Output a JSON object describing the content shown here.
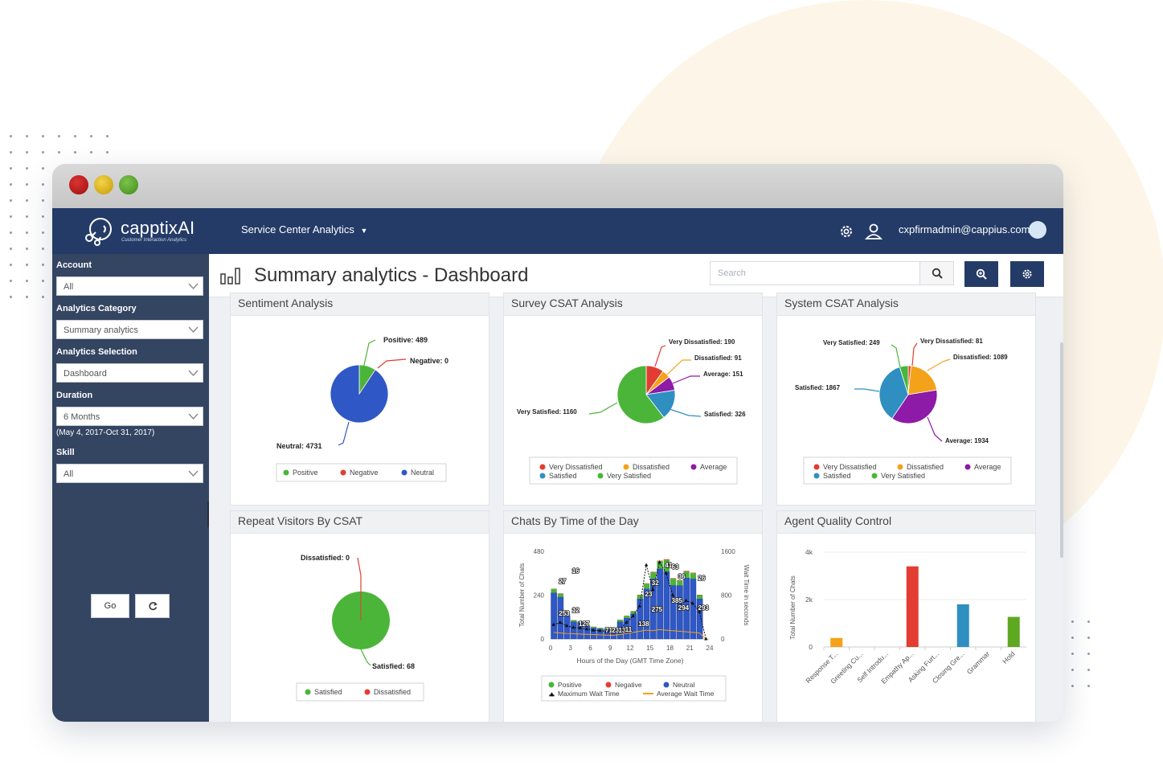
{
  "app": {
    "brand_name": "capptixAI",
    "brand_tagline": "Customer Interaction Analytics",
    "nav_menu": "Service Center Analytics",
    "user_email": "cxpfirmadmin@cappius.com"
  },
  "sidebar": {
    "account_label": "Account",
    "account_value": "All",
    "category_label": "Analytics Category",
    "category_value": "Summary analytics",
    "selection_label": "Analytics Selection",
    "selection_value": "Dashboard",
    "duration_label": "Duration",
    "duration_value": "6 Months",
    "duration_range": "(May 4, 2017-Oct 31, 2017)",
    "skill_label": "Skill",
    "skill_value": "All",
    "go_label": "Go"
  },
  "header": {
    "title": "Summary analytics - Dashboard",
    "search_placeholder": "Search"
  },
  "cards": {
    "sentiment": "Sentiment Analysis",
    "survey": "Survey CSAT Analysis",
    "system": "System CSAT Analysis",
    "repeat": "Repeat Visitors By CSAT",
    "chats": "Chats By Time of the Day",
    "agent": "Agent Quality Control"
  },
  "colors": {
    "navy": "#243b67",
    "sidebar": "#344562",
    "green": "#4bb539",
    "red": "#e23c33",
    "blue": "#2f57c5",
    "orange": "#f5a21b",
    "purple": "#8e1aa8",
    "teal": "#2f8fc0",
    "olive": "#5ea822"
  },
  "chart_data": [
    {
      "type": "pie",
      "title": "Sentiment Analysis",
      "slices": [
        {
          "label": "Positive",
          "value": 489,
          "color": "#4bb539"
        },
        {
          "label": "Negative",
          "value": 0,
          "color": "#e23c33"
        },
        {
          "label": "Neutral",
          "value": 4731,
          "color": "#2f57c5"
        }
      ],
      "callouts": [
        "Positive: 489",
        "Negative: 0",
        "Neutral: 4731"
      ],
      "legend": [
        "Positive",
        "Negative",
        "Neutral"
      ]
    },
    {
      "type": "pie",
      "title": "Survey CSAT Analysis",
      "slices": [
        {
          "label": "Very Dissatisfied",
          "value": 190,
          "color": "#e23c33"
        },
        {
          "label": "Dissatisfied",
          "value": 91,
          "color": "#f5a21b"
        },
        {
          "label": "Average",
          "value": 151,
          "color": "#8e1aa8"
        },
        {
          "label": "Satisfied",
          "value": 326,
          "color": "#2f8fc0"
        },
        {
          "label": "Very Satisfied",
          "value": 1160,
          "color": "#4bb539"
        }
      ],
      "callouts": [
        "Very Dissatisfied: 190",
        "Dissatisfied: 91",
        "Average: 151",
        "Satisfied: 326",
        "Very Satisfied: 1160"
      ],
      "legend": [
        "Very Dissatisfied",
        "Dissatisfied",
        "Average",
        "Satisfied",
        "Very Satisfied"
      ]
    },
    {
      "type": "pie",
      "title": "System CSAT Analysis",
      "slices": [
        {
          "label": "Very Dissatisfied",
          "value": 81,
          "color": "#e23c33"
        },
        {
          "label": "Dissatisfied",
          "value": 1089,
          "color": "#f5a21b"
        },
        {
          "label": "Average",
          "value": 1934,
          "color": "#8e1aa8"
        },
        {
          "label": "Satisfied",
          "value": 1867,
          "color": "#2f8fc0"
        },
        {
          "label": "Very Satisfied",
          "value": 249,
          "color": "#4bb539"
        }
      ],
      "callouts": [
        "Very Dissatisfied: 81",
        "Dissatisfied: 1089",
        "Average: 1934",
        "Satisfied: 1867",
        "Very Satisfied: 249"
      ],
      "legend": [
        "Very Dissatisfied",
        "Dissatisfied",
        "Average",
        "Satisfied",
        "Very Satisfied"
      ]
    },
    {
      "type": "pie",
      "title": "Repeat Visitors By CSAT",
      "slices": [
        {
          "label": "Satisfied",
          "value": 68,
          "color": "#4bb539"
        },
        {
          "label": "Dissatisfied",
          "value": 0,
          "color": "#e23c33"
        }
      ],
      "callouts": [
        "Dissatisfied: 0",
        "Satisfied: 68"
      ],
      "legend": [
        "Satisfied",
        "Dissatisfied"
      ]
    },
    {
      "type": "bar",
      "title": "Chats By Time of the Day",
      "xlabel": "Hours of the Day (GMT Time Zone)",
      "ylabel": "Total Number of Chats",
      "y2label": "Wait Time in seconds",
      "ylim": [
        0,
        480
      ],
      "y2lim": [
        0,
        1600
      ],
      "yticks": [
        "480",
        "240",
        "0"
      ],
      "y2ticks": [
        "1600",
        "800",
        "0"
      ],
      "xticks": [
        "0",
        "3",
        "6",
        "9",
        "12",
        "15",
        "18",
        "21",
        "24"
      ],
      "hours": [
        0,
        1,
        2,
        3,
        4,
        5,
        6,
        7,
        8,
        9,
        10,
        11,
        12,
        13,
        14,
        15,
        16,
        17,
        18,
        19,
        20,
        21,
        22,
        23
      ],
      "series": [
        {
          "name": "Neutral",
          "values": [
            253,
            230,
            127,
            95,
            90,
            71,
            60,
            55,
            50,
            45,
            95,
            115,
            138,
            220,
            275,
            330,
            385,
            370,
            294,
            293,
            335,
            330,
            220,
            0
          ]
        },
        {
          "name": "Positive",
          "values": [
            20,
            18,
            10,
            8,
            8,
            7,
            6,
            5,
            5,
            4,
            10,
            12,
            14,
            20,
            28,
            35,
            41,
            63,
            36,
            26,
            35,
            30,
            20,
            0
          ]
        },
        {
          "name": "Negative",
          "values": [
            2,
            2,
            1,
            1,
            1,
            1,
            1,
            1,
            1,
            1,
            1,
            1,
            1,
            2,
            2,
            3,
            3,
            4,
            3,
            3,
            3,
            3,
            2,
            0
          ]
        },
        {
          "name": "Maximum Wait Time",
          "values": [
            260,
            300,
            240,
            210,
            200,
            180,
            160,
            150,
            140,
            130,
            180,
            300,
            420,
            600,
            1350,
            900,
            1400,
            1200,
            800,
            600,
            700,
            650,
            500,
            0
          ]
        },
        {
          "name": "Average Wait Time",
          "values": [
            120,
            110,
            100,
            95,
            90,
            85,
            80,
            75,
            70,
            65,
            80,
            100,
            120,
            140,
            160,
            150,
            170,
            160,
            150,
            140,
            130,
            120,
            110,
            0
          ]
        }
      ],
      "data_labels": [
        "27",
        "16",
        "253",
        "12",
        "127",
        "71",
        "23",
        "13",
        "11",
        "138",
        "23",
        "32",
        "41",
        "63",
        "36",
        "26",
        "275",
        "385",
        "294",
        "293"
      ],
      "legend": [
        "Positive",
        "Negative",
        "Neutral",
        "Maximum Wait Time",
        "Average Wait Time"
      ]
    },
    {
      "type": "bar",
      "title": "Agent Quality Control",
      "ylabel": "Total Number of Chats",
      "ylim": [
        0,
        4000
      ],
      "yticks": [
        "4k",
        "2k",
        "0"
      ],
      "categories": [
        "Response T...",
        "Greeting Cu...",
        "Self Introdu...",
        "Empathy Ap...",
        "Asking Furt...",
        "Closing Gre...",
        "Grammar",
        "Hold"
      ],
      "values": [
        380,
        0,
        0,
        3400,
        0,
        1800,
        0,
        1270
      ],
      "bar_colors": [
        "#f5a21b",
        "#f5a21b",
        "#f5a21b",
        "#e23c33",
        "#e23c33",
        "#2f8fc0",
        "#2f8fc0",
        "#5ea822"
      ]
    }
  ]
}
